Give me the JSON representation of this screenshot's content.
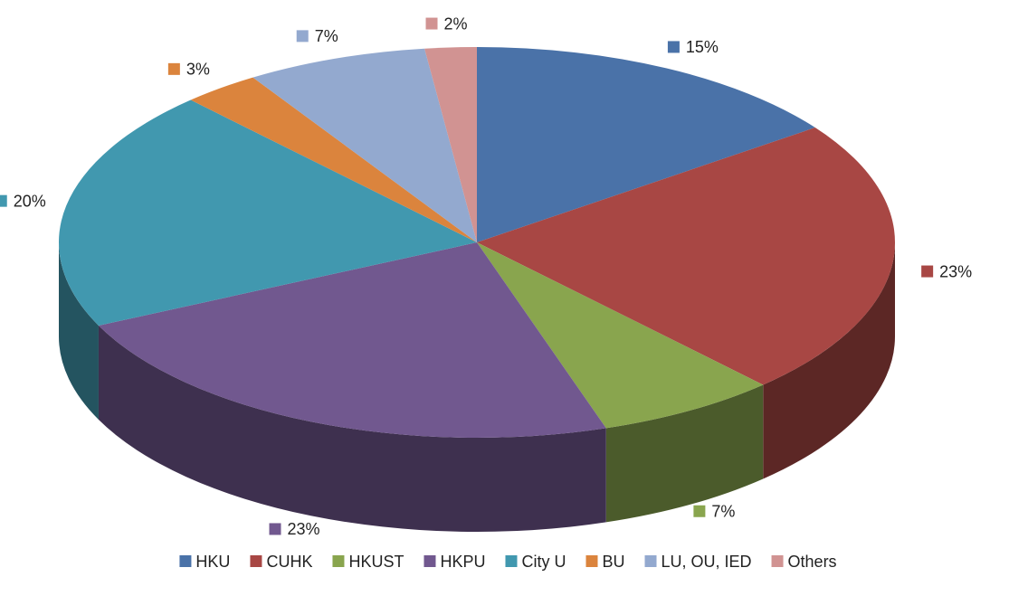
{
  "chart_data": {
    "type": "pie",
    "categories": [
      "HKU",
      "CUHK",
      "HKUST",
      "HKPU",
      "City U",
      "BU",
      "LU, OU, IED",
      "Others"
    ],
    "values": [
      15,
      23,
      7,
      23,
      20,
      3,
      7,
      2
    ],
    "value_labels": [
      "15%",
      "23%",
      "7%",
      "23%",
      "20%",
      "3%",
      "7%",
      "2%"
    ],
    "colors": [
      "#4a72a8",
      "#a84744",
      "#89a54e",
      "#71588f",
      "#4198af",
      "#db843d",
      "#93a9cf",
      "#d19392"
    ],
    "legend": "bottom"
  }
}
